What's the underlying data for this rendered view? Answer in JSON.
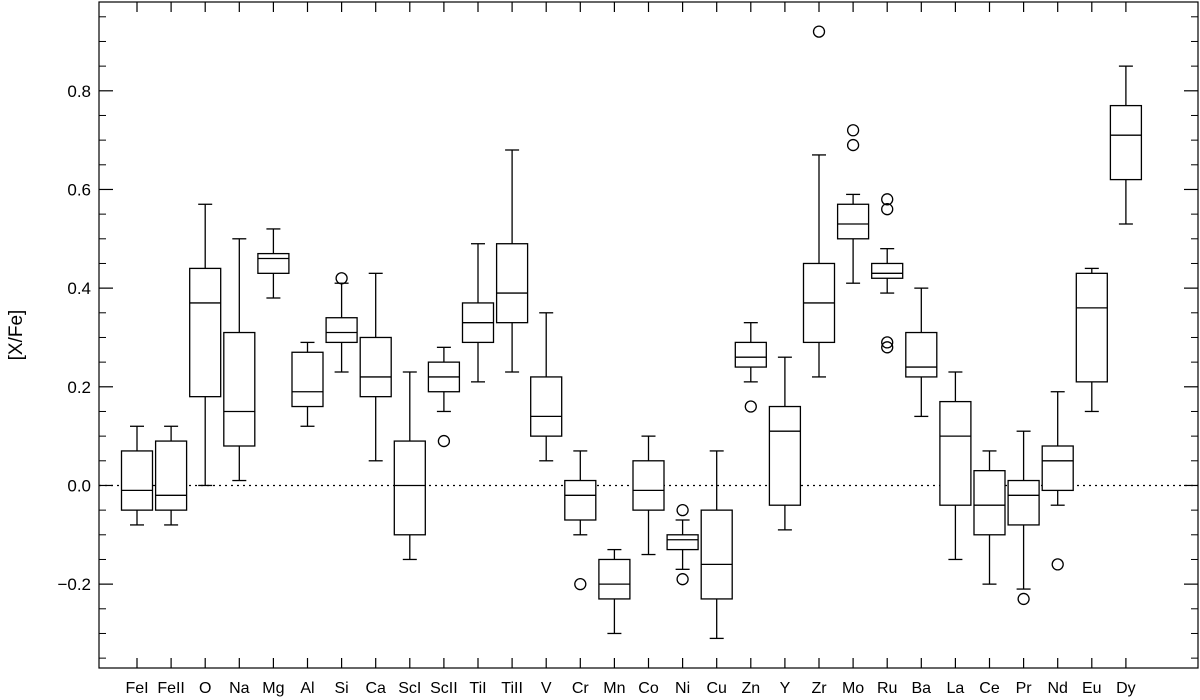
{
  "chart_data": {
    "type": "boxplot",
    "title": "",
    "xlabel": "",
    "ylabel": "[X/Fe]",
    "ylim": [
      -0.37,
      0.98
    ],
    "yticks": [
      -0.2,
      0.0,
      0.2,
      0.4,
      0.6,
      0.8
    ],
    "ytick_labels": [
      "−0.2",
      "0.0",
      "0.2",
      "0.4",
      "0.6",
      "0.8"
    ],
    "reference_line": 0.0,
    "grid": false,
    "boxes": [
      {
        "label": "FeI",
        "whisker_low": -0.08,
        "q1": -0.05,
        "median": -0.01,
        "q3": 0.07,
        "whisker_high": 0.12,
        "outliers": []
      },
      {
        "label": "FeII",
        "whisker_low": -0.08,
        "q1": -0.05,
        "median": -0.02,
        "q3": 0.09,
        "whisker_high": 0.12,
        "outliers": []
      },
      {
        "label": "O",
        "whisker_low": 0.0,
        "q1": 0.18,
        "median": 0.37,
        "q3": 0.44,
        "whisker_high": 0.57,
        "outliers": []
      },
      {
        "label": "Na",
        "whisker_low": 0.01,
        "q1": 0.08,
        "median": 0.15,
        "q3": 0.31,
        "whisker_high": 0.5,
        "outliers": []
      },
      {
        "label": "Mg",
        "whisker_low": 0.38,
        "q1": 0.43,
        "median": 0.46,
        "q3": 0.47,
        "whisker_high": 0.52,
        "outliers": []
      },
      {
        "label": "Al",
        "whisker_low": 0.12,
        "q1": 0.16,
        "median": 0.19,
        "q3": 0.27,
        "whisker_high": 0.29,
        "outliers": []
      },
      {
        "label": "Si",
        "whisker_low": 0.23,
        "q1": 0.29,
        "median": 0.31,
        "q3": 0.34,
        "whisker_high": 0.41,
        "outliers": [
          0.42
        ]
      },
      {
        "label": "Ca",
        "whisker_low": 0.05,
        "q1": 0.18,
        "median": 0.22,
        "q3": 0.3,
        "whisker_high": 0.43,
        "outliers": []
      },
      {
        "label": "ScI",
        "whisker_low": -0.15,
        "q1": -0.1,
        "median": 0.0,
        "q3": 0.09,
        "whisker_high": 0.23,
        "outliers": []
      },
      {
        "label": "ScII",
        "whisker_low": 0.15,
        "q1": 0.19,
        "median": 0.22,
        "q3": 0.25,
        "whisker_high": 0.28,
        "outliers": [
          0.09
        ]
      },
      {
        "label": "TiI",
        "whisker_low": 0.21,
        "q1": 0.29,
        "median": 0.33,
        "q3": 0.37,
        "whisker_high": 0.49,
        "outliers": []
      },
      {
        "label": "TiII",
        "whisker_low": 0.23,
        "q1": 0.33,
        "median": 0.39,
        "q3": 0.49,
        "whisker_high": 0.68,
        "outliers": []
      },
      {
        "label": "V",
        "whisker_low": 0.05,
        "q1": 0.1,
        "median": 0.14,
        "q3": 0.22,
        "whisker_high": 0.35,
        "outliers": []
      },
      {
        "label": "Cr",
        "whisker_low": -0.1,
        "q1": -0.07,
        "median": -0.02,
        "q3": 0.01,
        "whisker_high": 0.07,
        "outliers": [
          -0.2
        ]
      },
      {
        "label": "Mn",
        "whisker_low": -0.3,
        "q1": -0.23,
        "median": -0.2,
        "q3": -0.15,
        "whisker_high": -0.13,
        "outliers": []
      },
      {
        "label": "Co",
        "whisker_low": -0.14,
        "q1": -0.05,
        "median": -0.01,
        "q3": 0.05,
        "whisker_high": 0.1,
        "outliers": []
      },
      {
        "label": "Ni",
        "whisker_low": -0.17,
        "q1": -0.13,
        "median": -0.11,
        "q3": -0.1,
        "whisker_high": -0.07,
        "outliers": [
          -0.05,
          -0.19
        ]
      },
      {
        "label": "Cu",
        "whisker_low": -0.31,
        "q1": -0.23,
        "median": -0.16,
        "q3": -0.05,
        "whisker_high": 0.07,
        "outliers": []
      },
      {
        "label": "Zn",
        "whisker_low": 0.21,
        "q1": 0.24,
        "median": 0.26,
        "q3": 0.29,
        "whisker_high": 0.33,
        "outliers": [
          0.16
        ]
      },
      {
        "label": "Y",
        "whisker_low": -0.09,
        "q1": -0.04,
        "median": 0.11,
        "q3": 0.16,
        "whisker_high": 0.26,
        "outliers": []
      },
      {
        "label": "Zr",
        "whisker_low": 0.22,
        "q1": 0.29,
        "median": 0.37,
        "q3": 0.45,
        "whisker_high": 0.67,
        "outliers": [
          0.92
        ]
      },
      {
        "label": "Mo",
        "whisker_low": 0.41,
        "q1": 0.5,
        "median": 0.53,
        "q3": 0.57,
        "whisker_high": 0.59,
        "outliers": [
          0.72,
          0.69
        ]
      },
      {
        "label": "Ru",
        "whisker_low": 0.39,
        "q1": 0.42,
        "median": 0.43,
        "q3": 0.45,
        "whisker_high": 0.48,
        "outliers": [
          0.58,
          0.56,
          0.29,
          0.28
        ]
      },
      {
        "label": "Ba",
        "whisker_low": 0.14,
        "q1": 0.22,
        "median": 0.24,
        "q3": 0.31,
        "whisker_high": 0.4,
        "outliers": []
      },
      {
        "label": "La",
        "whisker_low": -0.15,
        "q1": -0.04,
        "median": 0.1,
        "q3": 0.17,
        "whisker_high": 0.23,
        "outliers": []
      },
      {
        "label": "Ce",
        "whisker_low": -0.2,
        "q1": -0.1,
        "median": -0.04,
        "q3": 0.03,
        "whisker_high": 0.07,
        "outliers": []
      },
      {
        "label": "Pr",
        "whisker_low": -0.21,
        "q1": -0.08,
        "median": -0.02,
        "q3": 0.01,
        "whisker_high": 0.11,
        "outliers": [
          -0.23
        ]
      },
      {
        "label": "Nd",
        "whisker_low": -0.04,
        "q1": -0.01,
        "median": 0.05,
        "q3": 0.08,
        "whisker_high": 0.19,
        "outliers": [
          -0.16
        ]
      },
      {
        "label": "Eu",
        "whisker_low": 0.15,
        "q1": 0.21,
        "median": 0.36,
        "q3": 0.43,
        "whisker_high": 0.44,
        "outliers": []
      },
      {
        "label": "Dy",
        "whisker_low": 0.53,
        "q1": 0.62,
        "median": 0.71,
        "q3": 0.77,
        "whisker_high": 0.85,
        "outliers": []
      }
    ]
  }
}
